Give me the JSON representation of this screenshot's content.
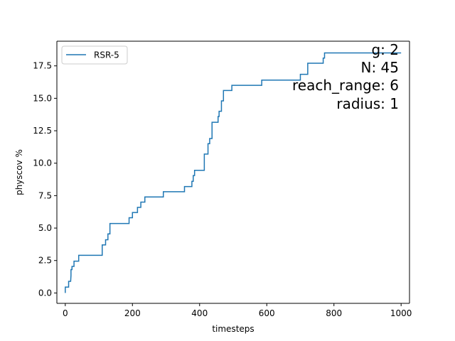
{
  "chart_data": {
    "type": "line",
    "xlabel": "timesteps",
    "ylabel": "physcov %",
    "xlim": [
      -25,
      1025
    ],
    "ylim": [
      -0.8,
      19.4
    ],
    "xticks": [
      0,
      200,
      400,
      600,
      800,
      1000
    ],
    "xtick_labels": [
      "0",
      "200",
      "400",
      "600",
      "800",
      "1000"
    ],
    "yticks": [
      0.0,
      2.5,
      5.0,
      7.5,
      10.0,
      12.5,
      15.0,
      17.5
    ],
    "ytick_labels": [
      "0.0",
      "2.5",
      "5.0",
      "7.5",
      "10.0",
      "12.5",
      "15.0",
      "17.5"
    ],
    "grid": false,
    "legend_position": "upper-left",
    "series": [
      {
        "name": "RSR-5",
        "color": "#1f77b4",
        "x": [
          0,
          0,
          10,
          10,
          16,
          17,
          17,
          20,
          20,
          26,
          26,
          40,
          40,
          110,
          110,
          120,
          120,
          127,
          127,
          133,
          133,
          143,
          143,
          190,
          190,
          200,
          200,
          215,
          215,
          225,
          225,
          237,
          237,
          247,
          247,
          292,
          292,
          355,
          355,
          377,
          377,
          381,
          381,
          385,
          385,
          414,
          414,
          425,
          425,
          430,
          430,
          437,
          437,
          455,
          455,
          458,
          458,
          465,
          465,
          471,
          471,
          496,
          496,
          585,
          585,
          700,
          700,
          722,
          722,
          768,
          768,
          772,
          772,
          1000
        ],
        "y": [
          0.0,
          0.45,
          0.45,
          0.9,
          0.9,
          1.35,
          1.8,
          1.8,
          2.05,
          2.05,
          2.45,
          2.45,
          2.9,
          2.9,
          3.7,
          3.7,
          4.1,
          4.1,
          4.55,
          4.55,
          5.35,
          5.35,
          5.35,
          5.35,
          5.8,
          5.8,
          6.2,
          6.2,
          6.6,
          6.6,
          7.0,
          7.0,
          7.4,
          7.4,
          7.4,
          7.4,
          7.8,
          7.8,
          8.2,
          8.2,
          8.6,
          8.6,
          9.05,
          9.05,
          9.45,
          9.45,
          10.7,
          10.7,
          11.5,
          11.5,
          11.9,
          11.9,
          13.15,
          13.15,
          13.6,
          13.6,
          14.0,
          14.0,
          14.8,
          14.8,
          15.6,
          15.6,
          16.0,
          16.0,
          16.4,
          16.4,
          16.85,
          16.85,
          17.7,
          17.7,
          18.1,
          18.1,
          18.5,
          18.5
        ]
      }
    ],
    "annotations": [
      "g: 2",
      "N: 45",
      "reach_range: 6",
      "radius: 1"
    ]
  }
}
